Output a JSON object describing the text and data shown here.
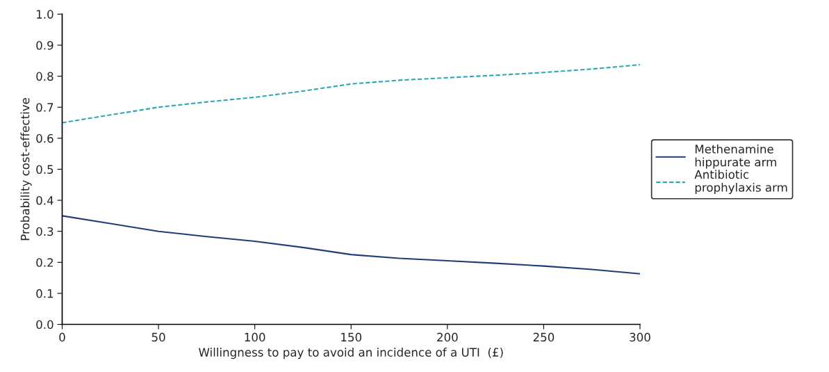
{
  "chart_data": {
    "type": "line",
    "xlabel": "Willingness to pay to avoid an incidence of a UTI  (£)",
    "ylabel": "Probability cost-effective",
    "x": [
      0,
      25,
      50,
      75,
      100,
      125,
      150,
      175,
      200,
      225,
      250,
      275,
      300
    ],
    "series": [
      {
        "name": "Methenamine hippurate arm",
        "color": "#1f3d7a",
        "line_style": "solid",
        "values": [
          0.35,
          0.325,
          0.3,
          0.283,
          0.268,
          0.248,
          0.225,
          0.213,
          0.205,
          0.197,
          0.188,
          0.177,
          0.163
        ]
      },
      {
        "name": "Antibiotic prophylaxis arm",
        "color": "#2aa8b5",
        "line_style": "dashed",
        "values": [
          0.65,
          0.675,
          0.7,
          0.717,
          0.732,
          0.752,
          0.775,
          0.787,
          0.795,
          0.803,
          0.812,
          0.823,
          0.837
        ]
      }
    ],
    "xlim": [
      0,
      300
    ],
    "xticks": [
      0,
      50,
      100,
      150,
      200,
      250,
      300
    ],
    "ylim": [
      0,
      1.0
    ],
    "yticks": [
      {
        "value": 0,
        "label": "0.0"
      },
      {
        "value": 0.1,
        "label": "0.1"
      },
      {
        "value": 0.2,
        "label": "0.2"
      },
      {
        "value": 0.3,
        "label": "0.3"
      },
      {
        "value": 0.4,
        "label": "0.4"
      },
      {
        "value": 0.5,
        "label": "0.5"
      },
      {
        "value": 0.6,
        "label": "0.6"
      },
      {
        "value": 0.7,
        "label": "0.7"
      },
      {
        "value": 0.8,
        "label": "0.8"
      },
      {
        "value": 0.9,
        "label": "0.9"
      },
      {
        "value": 1.0,
        "label": "1.0"
      }
    ],
    "grid": false,
    "legend": "right"
  }
}
